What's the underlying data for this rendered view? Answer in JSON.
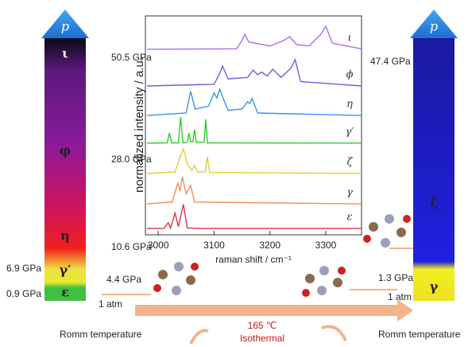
{
  "chart_data": {
    "type": "line",
    "xlabel": "raman shift / cm⁻¹",
    "ylabel": "normalized intensity / a.u.",
    "xlim": [
      2977,
      3364
    ],
    "xticks": [
      3000,
      3100,
      3200,
      3300
    ],
    "ylim": [
      0,
      8
    ],
    "series": [
      {
        "name": "ι",
        "color": "#a56ee6",
        "x": [
          2980,
          3140,
          3150,
          3155,
          3162,
          3200,
          3225,
          3235,
          3248,
          3270,
          3290,
          3300,
          3312,
          3364
        ],
        "values": [
          6.78,
          6.8,
          7.1,
          7.33,
          7.05,
          6.9,
          7.1,
          7.24,
          6.95,
          6.9,
          7.3,
          7.62,
          7.0,
          6.8
        ]
      },
      {
        "name": "ϕ",
        "color": "#6464d8",
        "x": [
          2980,
          3100,
          3110,
          3115,
          3125,
          3160,
          3170,
          3178,
          3185,
          3195,
          3205,
          3220,
          3238,
          3245,
          3255,
          3364
        ],
        "values": [
          5.44,
          5.5,
          5.9,
          6.17,
          5.7,
          5.75,
          6.02,
          5.85,
          5.95,
          5.8,
          6.05,
          5.75,
          6.1,
          6.4,
          5.6,
          5.44
        ]
      },
      {
        "name": "η",
        "color": "#3a92ee",
        "x": [
          2980,
          3050,
          3058,
          3066,
          3090,
          3100,
          3105,
          3110,
          3118,
          3125,
          3150,
          3160,
          3164,
          3168,
          3178,
          3364
        ],
        "values": [
          4.36,
          4.45,
          5.24,
          4.6,
          4.7,
          5.18,
          5.0,
          5.32,
          4.9,
          4.55,
          4.6,
          4.86,
          4.8,
          4.98,
          4.45,
          4.36
        ]
      },
      {
        "name": "γ′",
        "color": "#28d028",
        "x": [
          2980,
          3016,
          3020,
          3024,
          3036,
          3040,
          3044,
          3052,
          3055,
          3058,
          3062,
          3065,
          3068,
          3082,
          3085,
          3088,
          3364
        ],
        "values": [
          3.35,
          3.36,
          3.72,
          3.36,
          3.36,
          4.3,
          3.36,
          3.38,
          3.72,
          3.4,
          3.4,
          3.85,
          3.38,
          3.38,
          4.22,
          3.36,
          3.35
        ]
      },
      {
        "name": "ζ",
        "color": "#e2cc3c",
        "x": [
          2980,
          3030,
          3040,
          3045,
          3052,
          3060,
          3065,
          3070,
          3084,
          3088,
          3092,
          3364
        ],
        "values": [
          2.24,
          2.3,
          2.9,
          3.14,
          2.6,
          2.35,
          2.53,
          2.3,
          2.3,
          2.85,
          2.28,
          2.24
        ]
      },
      {
        "name": "γ",
        "color": "#f08e5e",
        "x": [
          2980,
          3025,
          3035,
          3039,
          3043,
          3050,
          3054,
          3058,
          3065,
          3364
        ],
        "values": [
          1.13,
          1.2,
          1.89,
          1.6,
          2.12,
          1.5,
          1.65,
          1.8,
          1.2,
          1.13
        ]
      },
      {
        "name": "ε",
        "color": "#e0344a",
        "x": [
          2980,
          3010,
          3018,
          3022,
          3030,
          3036,
          3045,
          3052,
          3080,
          3364
        ],
        "values": [
          0.23,
          0.23,
          0.44,
          0.25,
          0.79,
          0.3,
          1.11,
          0.25,
          0.23,
          0.23
        ]
      }
    ]
  },
  "left_bar": {
    "top": "p",
    "phases": [
      "ι",
      "φ",
      "η",
      "γ′",
      "ε"
    ],
    "pressures": [
      "50.5 GPa",
      "28.0 GPa",
      "10.6 GPa",
      "4.4 GPa",
      "1 atm"
    ],
    "outer_pressures": [
      "6.9 GPa",
      "0.9 GPa"
    ]
  },
  "right_bar": {
    "top": "p",
    "phases": [
      "ζ",
      "γ"
    ],
    "pressures": [
      "47.4 GPa",
      "1.3 GPa",
      "1 atm"
    ]
  },
  "footer": {
    "left": "Romm temperature",
    "center_temp": "165 ℃",
    "center_label": "Isothermal",
    "right": "Romm temperature"
  }
}
